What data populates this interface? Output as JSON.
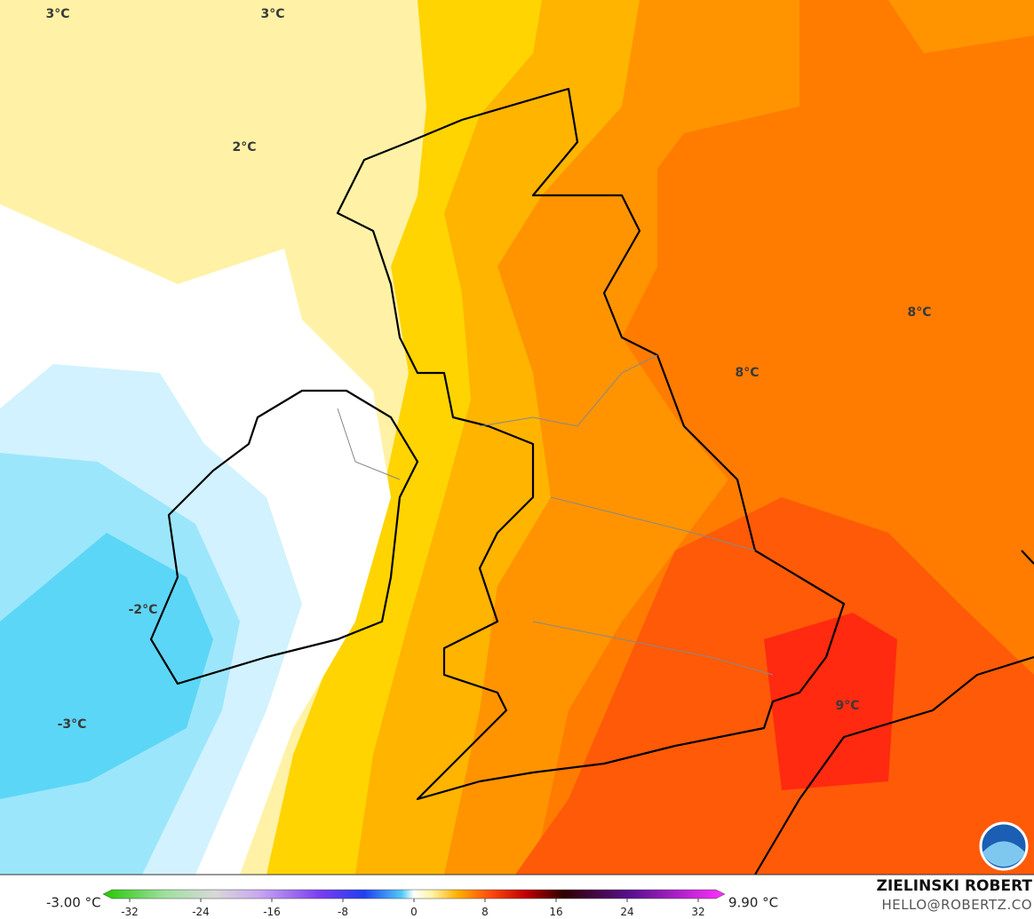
{
  "map": {
    "labels": [
      "3°C",
      "3°C",
      "2°C",
      "8°C",
      "8°C",
      "-2°C",
      "-3°C",
      "9°C"
    ],
    "colorbar": {
      "min_label": "-3.00 °C",
      "max_label": "9.90 °C",
      "lim": [
        -35,
        35
      ],
      "ticks": [
        -32,
        -24,
        -16,
        -8,
        0,
        8,
        16,
        24,
        32
      ]
    },
    "credit": {
      "name": "ZIELINSKI ROBERT",
      "email": "HELLO@ROBERTZ.CO"
    }
  }
}
